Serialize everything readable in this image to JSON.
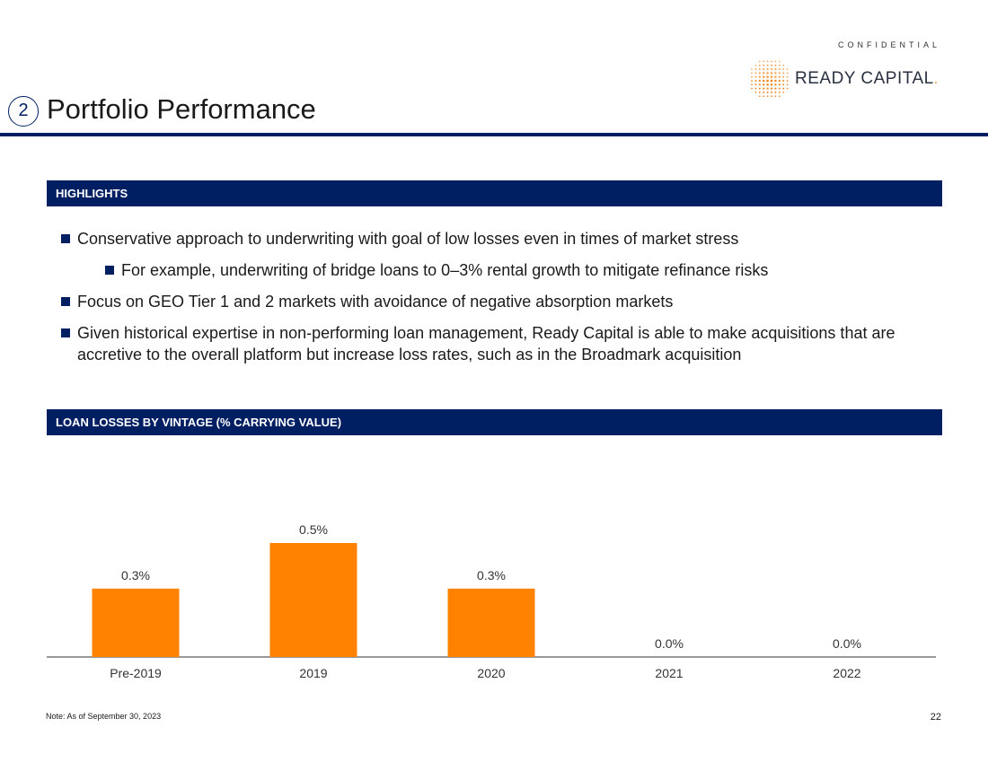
{
  "header": {
    "confidential": "CONFIDENTIAL",
    "logo_text": "READY CAPITAL",
    "logo_suffix": ".",
    "section_number": "2",
    "title": "Portfolio Performance"
  },
  "highlights": {
    "heading": "HIGHLIGHTS",
    "items": [
      "Conservative approach to underwriting with goal of low losses even in times of market stress",
      "For example, underwriting of bridge loans to 0–3% rental growth to mitigate refinance risks",
      "Focus on GEO Tier 1 and 2 markets with avoidance of negative absorption markets",
      "Given historical expertise in non-performing loan management, Ready Capital is able to make acquisitions that are accretive to the overall platform but increase loss rates, such as in the Broadmark acquisition"
    ]
  },
  "chart_section": {
    "heading": "LOAN LOSSES BY VINTAGE (% CARRYING VALUE)"
  },
  "chart_data": {
    "type": "bar",
    "title": "LOAN LOSSES BY VINTAGE (% CARRYING VALUE)",
    "categories": [
      "Pre-2019",
      "2019",
      "2020",
      "2021",
      "2022"
    ],
    "values": [
      0.3,
      0.5,
      0.3,
      0.0,
      0.0
    ],
    "value_labels": [
      "0.3%",
      "0.5%",
      "0.3%",
      "0.0%",
      "0.0%"
    ],
    "bar_color": "#ff8200",
    "xlabel": "",
    "ylabel": "",
    "ylim": [
      0,
      0.5
    ],
    "grid": false,
    "legend": "none"
  },
  "footer": {
    "note": "Note: As of September 30, 2023",
    "page_number": "22"
  },
  "colors": {
    "navy": "#001e62",
    "accent": "#ff8200"
  }
}
